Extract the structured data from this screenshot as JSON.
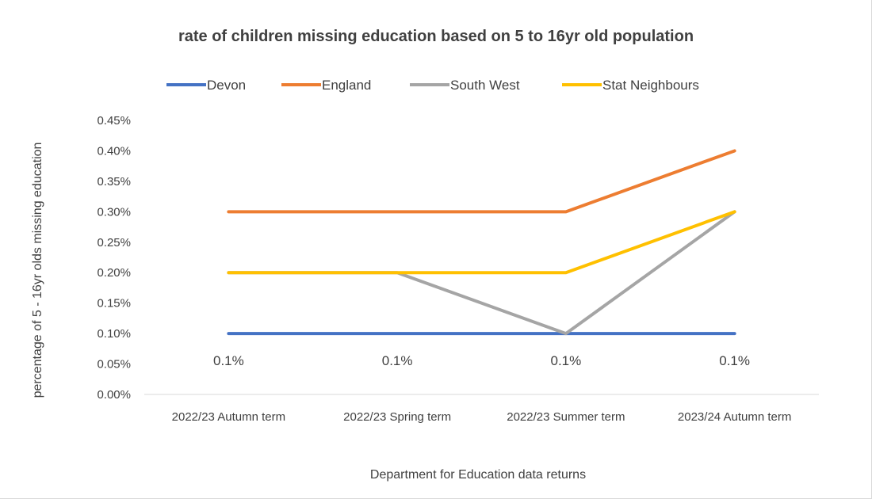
{
  "chart_data": {
    "type": "line",
    "title": "rate of children missing education based on 5 to 16yr old population",
    "xlabel": "Department for Education data returns",
    "ylabel": "percentage of 5 - 16yr olds missing education",
    "categories": [
      "2022/23 Autumn term",
      "2022/23 Spring term",
      "2022/23 Summer term",
      "2023/24 Autumn term"
    ],
    "ylim": [
      0,
      0.45
    ],
    "yticks": [
      "0.00%",
      "0.05%",
      "0.10%",
      "0.15%",
      "0.20%",
      "0.25%",
      "0.30%",
      "0.35%",
      "0.40%",
      "0.45%"
    ],
    "legend_position": "top",
    "grid": false,
    "series": [
      {
        "name": "Devon",
        "color": "#4472C4",
        "values": [
          0.1,
          0.1,
          0.1,
          0.1
        ]
      },
      {
        "name": "England",
        "color": "#ED7D31",
        "values": [
          0.3,
          0.3,
          0.3,
          0.4
        ]
      },
      {
        "name": "South West",
        "color": "#A5A5A5",
        "values": [
          0.2,
          0.2,
          0.1,
          0.3
        ]
      },
      {
        "name": "Stat Neighbours",
        "color": "#FFC000",
        "values": [
          0.2,
          0.2,
          0.2,
          0.3
        ]
      }
    ],
    "data_labels": {
      "series": "Devon",
      "labels": [
        "0.1%",
        "0.1%",
        "0.1%",
        "0.1%"
      ]
    }
  }
}
